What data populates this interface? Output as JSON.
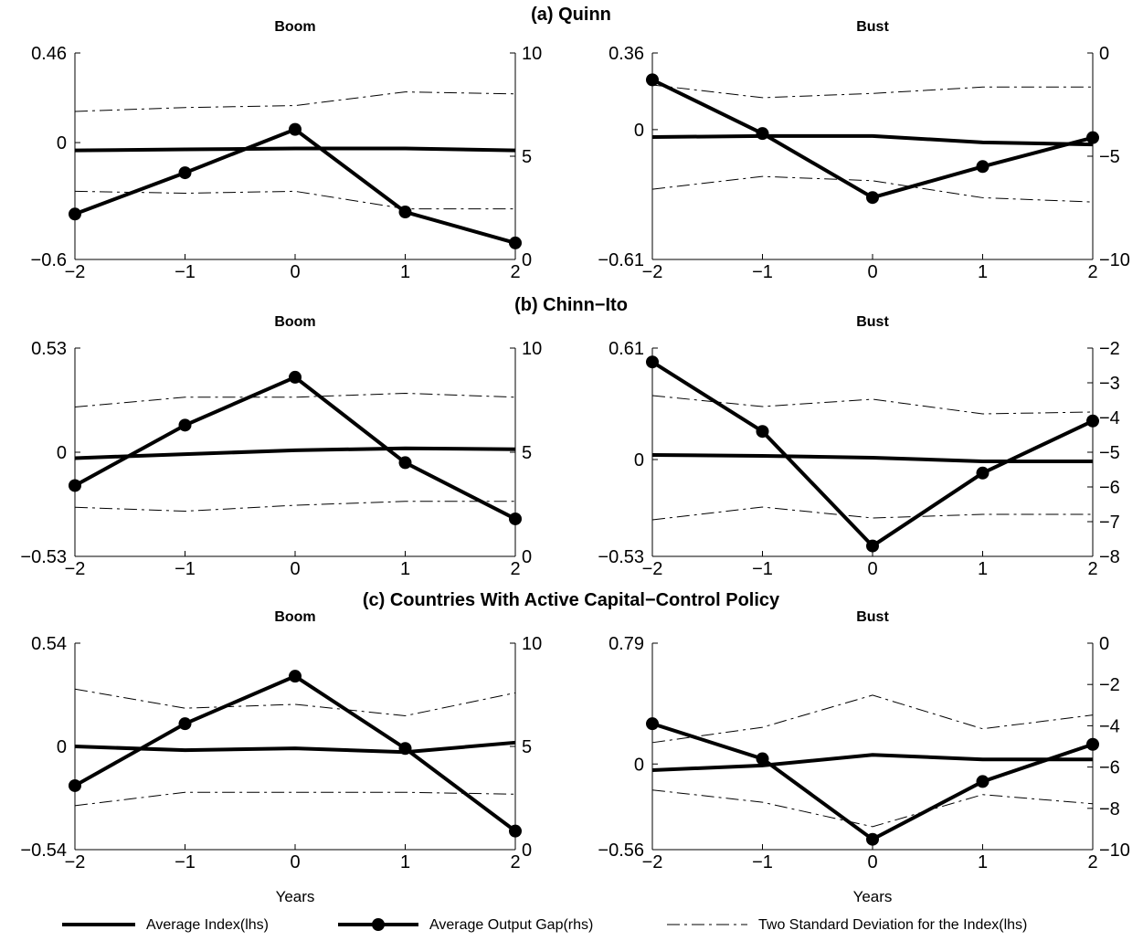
{
  "chart_data": {
    "type": "line",
    "rows": [
      {
        "title": "(a) Quinn",
        "panels": [
          {
            "title": "Boom",
            "x": [
              -2,
              -1,
              0,
              1,
              2
            ],
            "xticks": [
              "−2",
              "−1",
              "0",
              "1",
              "2"
            ],
            "xlabel": "",
            "ylim_left": [
              -0.6,
              0.46
            ],
            "yticks_left": [
              {
                "v": 0.46,
                "label": "0.46"
              },
              {
                "v": 0,
                "label": "0"
              },
              {
                "v": -0.6,
                "label": "−0.6"
              }
            ],
            "ylim_right": [
              0,
              10
            ],
            "yticks_right": [
              {
                "v": 10,
                "label": "10"
              },
              {
                "v": 5,
                "label": "5"
              },
              {
                "v": 0,
                "label": "0"
              }
            ],
            "series": [
              {
                "name": "Average Index(lhs)",
                "axis": "left",
                "values": [
                  -0.04,
                  -0.035,
                  -0.03,
                  -0.03,
                  -0.04
                ]
              },
              {
                "name": "Two Standard Deviation for the Index(lhs)",
                "axis": "left",
                "values": [
                  0.16,
                  0.18,
                  0.19,
                  0.26,
                  0.25
                ]
              },
              {
                "name": "Two Standard Deviation for the Index(lhs)",
                "axis": "left",
                "values": [
                  -0.25,
                  -0.26,
                  -0.25,
                  -0.34,
                  -0.34
                ]
              },
              {
                "name": "Average Output Gap(rhs)",
                "axis": "right",
                "values": [
                  2.2,
                  4.2,
                  6.3,
                  2.3,
                  0.8
                ]
              }
            ]
          },
          {
            "title": "Bust",
            "x": [
              -2,
              -1,
              0,
              1,
              2
            ],
            "xticks": [
              "−2",
              "−1",
              "0",
              "1",
              "2"
            ],
            "xlabel": "",
            "ylim_left": [
              -0.61,
              0.36
            ],
            "yticks_left": [
              {
                "v": 0.36,
                "label": "0.36"
              },
              {
                "v": 0,
                "label": "0"
              },
              {
                "v": -0.61,
                "label": "−0.61"
              }
            ],
            "ylim_right": [
              -10,
              0
            ],
            "yticks_right": [
              {
                "v": 0,
                "label": "0"
              },
              {
                "v": -5,
                "label": "−5"
              },
              {
                "v": -10,
                "label": "−10"
              }
            ],
            "series": [
              {
                "name": "Average Index(lhs)",
                "axis": "left",
                "values": [
                  -0.035,
                  -0.03,
                  -0.03,
                  -0.06,
                  -0.07
                ]
              },
              {
                "name": "Two Standard Deviation for the Index(lhs)",
                "axis": "left",
                "values": [
                  0.21,
                  0.15,
                  0.17,
                  0.2,
                  0.2
                ]
              },
              {
                "name": "Two Standard Deviation for the Index(lhs)",
                "axis": "left",
                "values": [
                  -0.28,
                  -0.22,
                  -0.24,
                  -0.32,
                  -0.34
                ]
              },
              {
                "name": "Average Output Gap(rhs)",
                "axis": "right",
                "values": [
                  -1.3,
                  -3.9,
                  -7.0,
                  -5.5,
                  -4.1
                ]
              }
            ]
          }
        ]
      },
      {
        "title": "(b) Chinn−Ito",
        "panels": [
          {
            "title": "Boom",
            "x": [
              -2,
              -1,
              0,
              1,
              2
            ],
            "xticks": [
              "−2",
              "−1",
              "0",
              "1",
              "2"
            ],
            "xlabel": "",
            "ylim_left": [
              -0.53,
              0.53
            ],
            "yticks_left": [
              {
                "v": 0.53,
                "label": "0.53"
              },
              {
                "v": 0,
                "label": "0"
              },
              {
                "v": -0.53,
                "label": "−0.53"
              }
            ],
            "ylim_right": [
              0,
              10
            ],
            "yticks_right": [
              {
                "v": 10,
                "label": "10"
              },
              {
                "v": 5,
                "label": "5"
              },
              {
                "v": 0,
                "label": "0"
              }
            ],
            "series": [
              {
                "name": "Average Index(lhs)",
                "axis": "left",
                "values": [
                  -0.03,
                  -0.01,
                  0.01,
                  0.02,
                  0.015
                ]
              },
              {
                "name": "Two Standard Deviation for the Index(lhs)",
                "axis": "left",
                "values": [
                  0.23,
                  0.28,
                  0.28,
                  0.3,
                  0.28
                ]
              },
              {
                "name": "Two Standard Deviation for the Index(lhs)",
                "axis": "left",
                "values": [
                  -0.28,
                  -0.3,
                  -0.27,
                  -0.25,
                  -0.25
                ]
              },
              {
                "name": "Average Output Gap(rhs)",
                "axis": "right",
                "values": [
                  3.4,
                  6.3,
                  8.6,
                  4.5,
                  1.8
                ]
              }
            ]
          },
          {
            "title": "Bust",
            "x": [
              -2,
              -1,
              0,
              1,
              2
            ],
            "xticks": [
              "−2",
              "−1",
              "0",
              "1",
              "2"
            ],
            "xlabel": "",
            "ylim_left": [
              -0.53,
              0.61
            ],
            "yticks_left": [
              {
                "v": 0.61,
                "label": "0.61"
              },
              {
                "v": 0,
                "label": "0"
              },
              {
                "v": -0.53,
                "label": "−0.53"
              }
            ],
            "ylim_right": [
              -8,
              -2
            ],
            "yticks_right": [
              {
                "v": -2,
                "label": "−2"
              },
              {
                "v": -3,
                "label": "−3"
              },
              {
                "v": -4,
                "label": "−4"
              },
              {
                "v": -5,
                "label": "−5"
              },
              {
                "v": -6,
                "label": "−6"
              },
              {
                "v": -7,
                "label": "−7"
              },
              {
                "v": -8,
                "label": "−8"
              }
            ],
            "series": [
              {
                "name": "Average Index(lhs)",
                "axis": "left",
                "values": [
                  0.025,
                  0.02,
                  0.01,
                  -0.01,
                  -0.01
                ]
              },
              {
                "name": "Two Standard Deviation for the Index(lhs)",
                "axis": "left",
                "values": [
                  0.35,
                  0.29,
                  0.33,
                  0.25,
                  0.26
                ]
              },
              {
                "name": "Two Standard Deviation for the Index(lhs)",
                "axis": "left",
                "values": [
                  -0.33,
                  -0.26,
                  -0.32,
                  -0.3,
                  -0.3
                ]
              },
              {
                "name": "Average Output Gap(rhs)",
                "axis": "right",
                "values": [
                  -2.4,
                  -4.4,
                  -7.7,
                  -5.6,
                  -4.1
                ]
              }
            ]
          }
        ]
      },
      {
        "title": "(c) Countries With Active Capital−Control Policy",
        "panels": [
          {
            "title": "Boom",
            "x": [
              -2,
              -1,
              0,
              1,
              2
            ],
            "xticks": [
              "−2",
              "−1",
              "0",
              "1",
              "2"
            ],
            "xlabel": "Years",
            "ylim_left": [
              -0.54,
              0.54
            ],
            "yticks_left": [
              {
                "v": 0.54,
                "label": "0.54"
              },
              {
                "v": 0,
                "label": "0"
              },
              {
                "v": -0.54,
                "label": "−0.54"
              }
            ],
            "ylim_right": [
              0,
              10
            ],
            "yticks_right": [
              {
                "v": 10,
                "label": "10"
              },
              {
                "v": 5,
                "label": "5"
              },
              {
                "v": 0,
                "label": "0"
              }
            ],
            "series": [
              {
                "name": "Average Index(lhs)",
                "axis": "left",
                "values": [
                  0.0,
                  -0.02,
                  -0.01,
                  -0.03,
                  0.02
                ]
              },
              {
                "name": "Two Standard Deviation for the Index(lhs)",
                "axis": "left",
                "values": [
                  0.3,
                  0.2,
                  0.22,
                  0.16,
                  0.28
                ]
              },
              {
                "name": "Two Standard Deviation for the Index(lhs)",
                "axis": "left",
                "values": [
                  -0.31,
                  -0.24,
                  -0.24,
                  -0.24,
                  -0.25
                ]
              },
              {
                "name": "Average Output Gap(rhs)",
                "axis": "right",
                "values": [
                  3.1,
                  6.1,
                  8.4,
                  4.9,
                  0.9
                ]
              }
            ]
          },
          {
            "title": "Bust",
            "x": [
              -2,
              -1,
              0,
              1,
              2
            ],
            "xticks": [
              "−2",
              "−1",
              "0",
              "1",
              "2"
            ],
            "xlabel": "Years",
            "ylim_left": [
              -0.56,
              0.79
            ],
            "yticks_left": [
              {
                "v": 0.79,
                "label": "0.79"
              },
              {
                "v": 0,
                "label": "0"
              },
              {
                "v": -0.56,
                "label": "−0.56"
              }
            ],
            "ylim_right": [
              -10,
              0
            ],
            "yticks_right": [
              {
                "v": 0,
                "label": "0"
              },
              {
                "v": -2,
                "label": "−2"
              },
              {
                "v": -4,
                "label": "−4"
              },
              {
                "v": -6,
                "label": "−6"
              },
              {
                "v": -8,
                "label": "−8"
              },
              {
                "v": -10,
                "label": "−10"
              }
            ],
            "series": [
              {
                "name": "Average Index(lhs)",
                "axis": "left",
                "values": [
                  -0.04,
                  -0.01,
                  0.06,
                  0.03,
                  0.03
                ]
              },
              {
                "name": "Two Standard Deviation for the Index(lhs)",
                "axis": "left",
                "values": [
                  0.14,
                  0.24,
                  0.45,
                  0.23,
                  0.32
                ]
              },
              {
                "name": "Two Standard Deviation for the Index(lhs)",
                "axis": "left",
                "values": [
                  -0.17,
                  -0.25,
                  -0.41,
                  -0.2,
                  -0.26
                ]
              },
              {
                "name": "Average Output Gap(rhs)",
                "axis": "right",
                "values": [
                  -3.9,
                  -5.6,
                  -9.5,
                  -6.7,
                  -4.9
                ]
              }
            ]
          }
        ]
      }
    ],
    "legend": {
      "position": "bottom",
      "items": [
        {
          "label": "Average Index(lhs)",
          "style": "solid"
        },
        {
          "label": "Average Output Gap(rhs)",
          "style": "solid-marker"
        },
        {
          "label": "Two Standard Deviation for the Index(lhs)",
          "style": "dashdot"
        }
      ]
    }
  }
}
